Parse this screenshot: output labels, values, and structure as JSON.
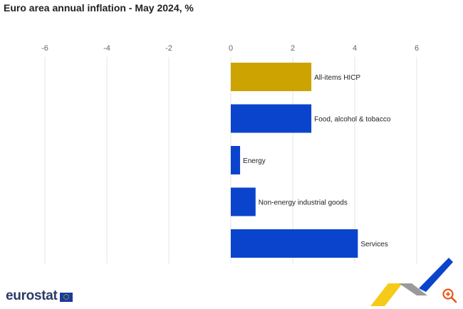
{
  "title": "Euro area annual inflation - May 2024, %",
  "brand": "eurostat",
  "chart_data": {
    "type": "bar",
    "orientation": "horizontal",
    "categories": [
      "All-items HICP",
      "Food, alcohol & tobacco",
      "Energy",
      "Non-energy industrial goods",
      "Services"
    ],
    "values": [
      2.6,
      2.6,
      0.3,
      0.8,
      4.1
    ],
    "xlim": [
      -6,
      6
    ],
    "xticks": [
      -6,
      -4,
      -2,
      0,
      2,
      4,
      6
    ],
    "grid": true,
    "colors": [
      "#cca300",
      "#0b44cc",
      "#0b44cc",
      "#0b44cc",
      "#0b44cc"
    ]
  }
}
